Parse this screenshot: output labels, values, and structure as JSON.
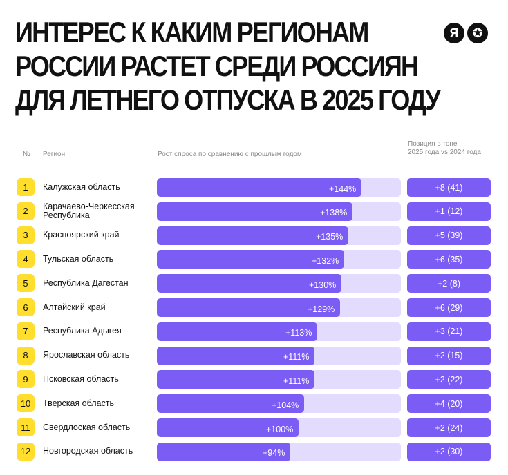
{
  "title_lines": [
    "Интерес к каким регионам",
    "России растет среди россиян",
    "для летнего отпуска в 2025 году"
  ],
  "logos": [
    "Я",
    "✪"
  ],
  "headers": {
    "num": "№",
    "region": "Регион",
    "growth": "Рост спроса по сравнению с прошлым годом",
    "position_line1": "Позиция в топе",
    "position_line2": "2025 года vs 2024 года"
  },
  "colors": {
    "bar": "#7b5cf5",
    "track": "#e3dcff",
    "badge": "#ffde2e"
  },
  "chart_data": {
    "type": "bar",
    "orientation": "horizontal",
    "categories": [
      "Калужская область",
      "Карачаево-Черкесская Республика",
      "Красноярский край",
      "Тульская область",
      "Республика Дагестан",
      "Алтайский край",
      "Республика Адыгея",
      "Ярославская область",
      "Псковская область",
      "Тверская область",
      "Свердлоская область",
      "Новгородская область"
    ],
    "ranks": [
      "1",
      "2",
      "3",
      "4",
      "5",
      "6",
      "7",
      "8",
      "9",
      "10",
      "11",
      "12"
    ],
    "values": [
      144,
      138,
      135,
      132,
      130,
      129,
      113,
      111,
      111,
      104,
      100,
      94
    ],
    "value_labels": [
      "+144%",
      "+138%",
      "+135%",
      "+132%",
      "+130%",
      "+129%",
      "+113%",
      "+111%",
      "+111%",
      "+104%",
      "+100%",
      "+94%"
    ],
    "position_change": [
      "+8 (41)",
      "+1 (12)",
      "+5 (39)",
      "+6 (35)",
      "+2 (8)",
      "+6 (29)",
      "+3 (21)",
      "+2 (15)",
      "+2 (22)",
      "+4 (20)",
      "+2 (24)",
      "+2 (30)"
    ],
    "xlim": [
      0,
      172
    ]
  }
}
